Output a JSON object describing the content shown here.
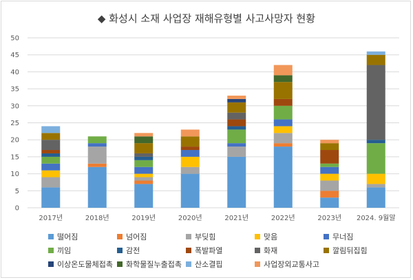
{
  "title": "◆ 화성시 소재 사업장 재해유형별 사고사망자 현황",
  "chart_data": {
    "type": "stacked-bar",
    "categories": [
      "2017년",
      "2018년",
      "2019년",
      "2020년",
      "2021년",
      "2022년",
      "2023년",
      "2024. 9월말"
    ],
    "ylim": [
      0,
      50
    ],
    "yticks": [
      0,
      5,
      10,
      15,
      20,
      25,
      30,
      35,
      40,
      45,
      50
    ],
    "grid": true,
    "legend_position": "bottom",
    "series": [
      {
        "name": "떨어짐",
        "color": "#5b9bd5",
        "values": [
          6,
          12,
          7,
          10,
          15,
          18,
          3,
          6
        ]
      },
      {
        "name": "넘어짐",
        "color": "#ed7d31",
        "values": [
          0,
          1,
          1,
          0,
          0,
          1,
          2,
          0
        ]
      },
      {
        "name": "부딪힘",
        "color": "#a5a5a5",
        "values": [
          3,
          5,
          1,
          2,
          3,
          3,
          3,
          1
        ]
      },
      {
        "name": "맞음",
        "color": "#ffc000",
        "values": [
          2,
          0,
          1,
          3,
          0,
          2,
          2,
          3
        ]
      },
      {
        "name": "무너짐",
        "color": "#4472c4",
        "values": [
          2,
          1,
          2,
          2,
          1,
          2,
          2,
          0
        ]
      },
      {
        "name": "끼임",
        "color": "#70ad47",
        "values": [
          2,
          2,
          2,
          0,
          4,
          4,
          1,
          9
        ]
      },
      {
        "name": "감전",
        "color": "#255e91",
        "values": [
          1,
          0,
          1,
          0,
          1,
          0,
          0,
          1
        ]
      },
      {
        "name": "폭발파열",
        "color": "#9e480e",
        "values": [
          1,
          0,
          0,
          1,
          2,
          2,
          4,
          0
        ]
      },
      {
        "name": "화재",
        "color": "#636363",
        "values": [
          3,
          0,
          1,
          0,
          2,
          0,
          0,
          22
        ]
      },
      {
        "name": "깔림뒤집힘",
        "color": "#997300",
        "values": [
          2,
          0,
          3,
          3,
          3,
          5,
          2,
          3
        ]
      },
      {
        "name": "이상온도물체접촉",
        "color": "#264478",
        "values": [
          0,
          0,
          0,
          0,
          1,
          0,
          0,
          0
        ]
      },
      {
        "name": "화학물질누출접촉",
        "color": "#43682b",
        "values": [
          0,
          0,
          2,
          0,
          0,
          2,
          0,
          0
        ]
      },
      {
        "name": "산소결핍",
        "color": "#7cafdd",
        "values": [
          2,
          0,
          0,
          0,
          0,
          0,
          0,
          1
        ]
      },
      {
        "name": "사업장외교통사고",
        "color": "#f1975a",
        "values": [
          0,
          0,
          1,
          2,
          1,
          3,
          1,
          0
        ]
      }
    ]
  }
}
